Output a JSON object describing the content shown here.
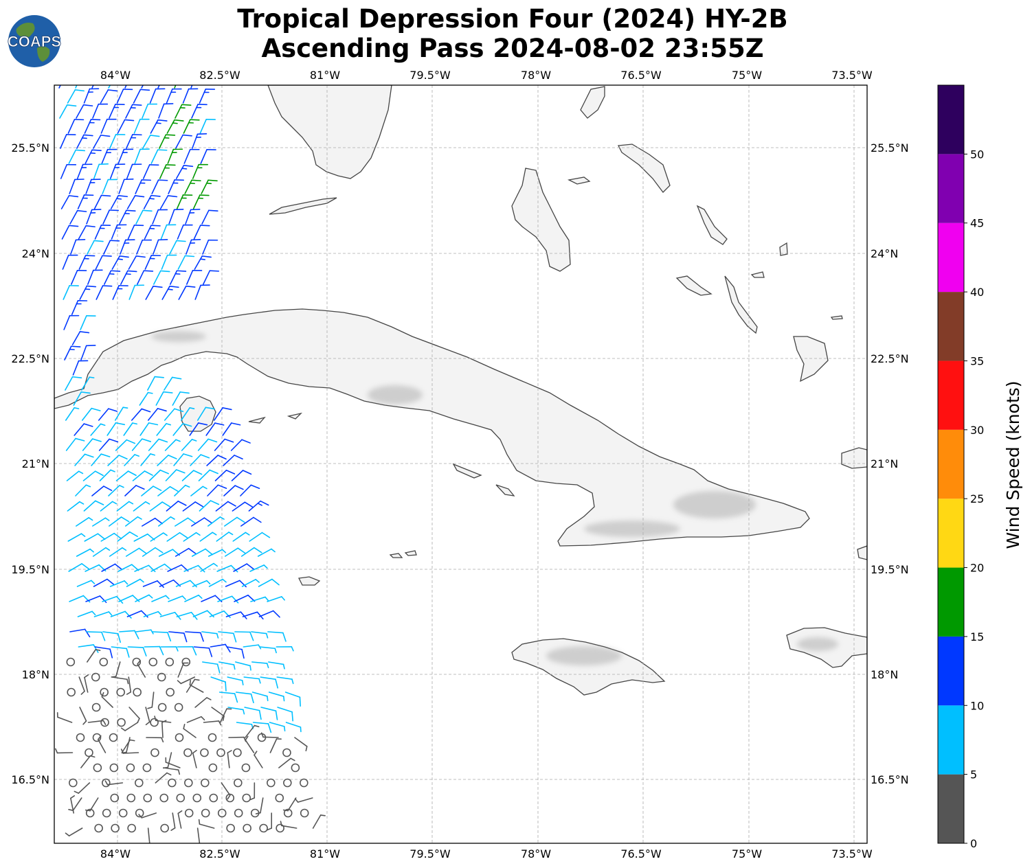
{
  "title": {
    "line1": "Tropical Depression Four (2024) HY-2B",
    "line2": "Ascending Pass 2024-08-02 23:55Z"
  },
  "logo": {
    "text": "COAPS",
    "ocean_color": "#1f5fa8",
    "land_color": "#5d8f3a"
  },
  "map": {
    "lon_range": [
      -84.45,
      -73.1
    ],
    "lat_range": [
      15.7,
      26.5
    ],
    "lon_ticks": [
      "84°W",
      "82.5°W",
      "81°W",
      "79.5°W",
      "78°W",
      "76.5°W",
      "75°W",
      "73.5°W"
    ],
    "lat_ticks": [
      "25.5°N",
      "24°N",
      "22.5°N",
      "21°N",
      "19.5°N",
      "18°N",
      "16.5°N"
    ],
    "gridlines": true,
    "coastline_color": "#444444",
    "terrain_shading": "grayscale relief on land"
  },
  "colorbar": {
    "label": "Wind Speed (knots)",
    "ticks": [
      "0",
      "5",
      "10",
      "15",
      "20",
      "25",
      "30",
      "35",
      "40",
      "45",
      "50"
    ],
    "bins": [
      {
        "min": 0,
        "max": 5,
        "color": "#555555"
      },
      {
        "min": 5,
        "max": 10,
        "color": "#00bfff"
      },
      {
        "min": 10,
        "max": 15,
        "color": "#0038ff"
      },
      {
        "min": 15,
        "max": 20,
        "color": "#009900"
      },
      {
        "min": 20,
        "max": 25,
        "color": "#ffd814"
      },
      {
        "min": 25,
        "max": 30,
        "color": "#ff8c0a"
      },
      {
        "min": 30,
        "max": 35,
        "color": "#ff1010"
      },
      {
        "min": 35,
        "max": 40,
        "color": "#823c28"
      },
      {
        "min": 40,
        "max": 45,
        "color": "#f000f0"
      },
      {
        "min": 45,
        "max": 50,
        "color": "#8000b0"
      },
      {
        "min": 50,
        "max": 55,
        "color": "#2e005e"
      }
    ]
  },
  "wind_barbs": {
    "description": "Scatterometer wind barbs over western Caribbean swath",
    "calm_marker": "circle"
  }
}
